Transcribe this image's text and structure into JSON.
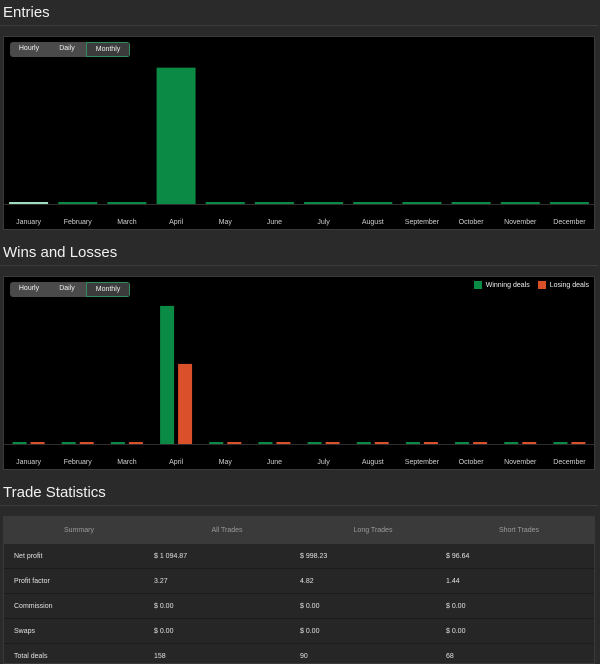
{
  "sections": {
    "entries_title": "Entries",
    "wins_title": "Wins and Losses",
    "stats_title": "Trade Statistics"
  },
  "period_buttons": [
    "Hourly",
    "Daily",
    "Monthly"
  ],
  "active_period": "Monthly",
  "colors": {
    "win": "#0b8a45",
    "loss": "#d9502a",
    "entries": "#0b8a45",
    "highlight": "#9fdcbf"
  },
  "chart_data": [
    {
      "type": "bar",
      "name": "Entries",
      "categories": [
        "January",
        "February",
        "March",
        "April",
        "May",
        "June",
        "July",
        "August",
        "September",
        "October",
        "November",
        "December"
      ],
      "series": [
        {
          "values": [
            0,
            0,
            0,
            158,
            0,
            0,
            0,
            0,
            0,
            0,
            0,
            0
          ]
        }
      ],
      "ylim": [
        0,
        168
      ]
    },
    {
      "type": "bar",
      "name": "Wins and Losses",
      "categories": [
        "January",
        "February",
        "March",
        "April",
        "May",
        "June",
        "July",
        "August",
        "September",
        "October",
        "November",
        "December"
      ],
      "series": [
        {
          "name": "Winning deals",
          "values": [
            0,
            0,
            0,
            100,
            0,
            0,
            0,
            0,
            0,
            0,
            0,
            0
          ]
        },
        {
          "name": "Losing deals",
          "values": [
            0,
            0,
            0,
            58,
            0,
            0,
            0,
            0,
            0,
            0,
            0,
            0
          ]
        }
      ],
      "ylim": [
        0,
        105
      ],
      "legend": "top-right"
    }
  ],
  "stats": {
    "headers": [
      "Summary",
      "All Trades",
      "Long Trades",
      "Short Trades"
    ],
    "rows": [
      [
        "Net profit",
        "$ 1 094.87",
        "$ 998.23",
        "$ 96.64"
      ],
      [
        "Profit factor",
        "3.27",
        "4.82",
        "1.44"
      ],
      [
        "Commission",
        "$ 0.00",
        "$ 0.00",
        "$ 0.00"
      ],
      [
        "Swaps",
        "$ 0.00",
        "$ 0.00",
        "$ 0.00"
      ],
      [
        "Total deals",
        "158",
        "90",
        "68"
      ]
    ]
  }
}
